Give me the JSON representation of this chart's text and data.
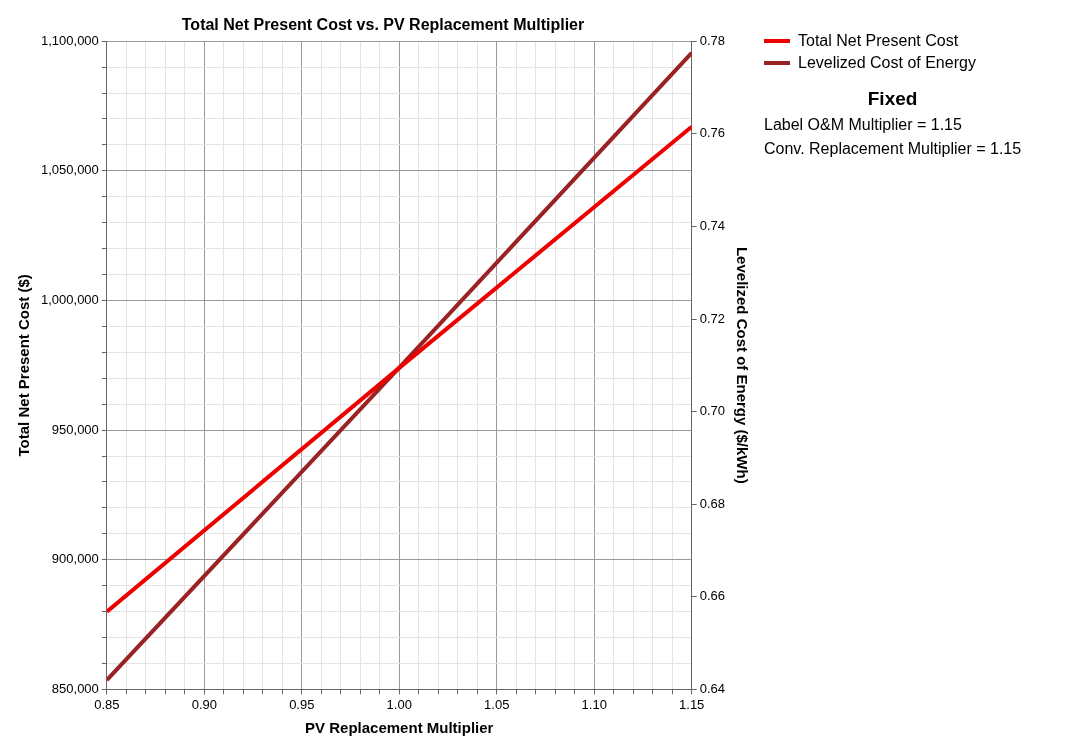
{
  "chart_data": {
    "type": "line",
    "title": "Total Net Present Cost vs. PV Replacement Multiplier",
    "xlabel": "PV Replacement Multiplier",
    "ylabel": "Total Net Present Cost ($)",
    "y2label": "Levelized Cost of Energy ($/kWh)",
    "series": [
      {
        "name": "Total Net Present Cost",
        "color": "#ee0000",
        "x": [
          0.85,
          1.0,
          1.15
        ],
        "values": [
          880000,
          974000,
          1067000
        ]
      },
      {
        "name": "Levelized Cost of Energy",
        "color": "#9b2223",
        "x": [
          0.85,
          1.0,
          1.15
        ],
        "values": [
          0.642,
          0.7095,
          0.7775
        ],
        "axis": "y2"
      }
    ],
    "xlim": [
      0.85,
      1.15
    ],
    "xticks": [
      {
        "value": 0.85,
        "label": "0.85"
      },
      {
        "value": 0.86,
        "label": null
      },
      {
        "value": 0.87,
        "label": null
      },
      {
        "value": 0.88,
        "label": null
      },
      {
        "value": 0.89,
        "label": null
      },
      {
        "value": 0.9,
        "label": "0.90"
      },
      {
        "value": 0.91,
        "label": null
      },
      {
        "value": 0.92,
        "label": null
      },
      {
        "value": 0.93,
        "label": null
      },
      {
        "value": 0.94,
        "label": null
      },
      {
        "value": 0.95,
        "label": "0.95"
      },
      {
        "value": 0.96,
        "label": null
      },
      {
        "value": 0.97,
        "label": null
      },
      {
        "value": 0.98,
        "label": null
      },
      {
        "value": 0.99,
        "label": null
      },
      {
        "value": 1.0,
        "label": "1.00"
      },
      {
        "value": 1.01,
        "label": null
      },
      {
        "value": 1.02,
        "label": null
      },
      {
        "value": 1.03,
        "label": null
      },
      {
        "value": 1.04,
        "label": null
      },
      {
        "value": 1.05,
        "label": "1.05"
      },
      {
        "value": 1.06,
        "label": null
      },
      {
        "value": 1.07,
        "label": null
      },
      {
        "value": 1.08,
        "label": null
      },
      {
        "value": 1.09,
        "label": null
      },
      {
        "value": 1.1,
        "label": "1.10"
      },
      {
        "value": 1.11,
        "label": null
      },
      {
        "value": 1.12,
        "label": null
      },
      {
        "value": 1.13,
        "label": null
      },
      {
        "value": 1.14,
        "label": null
      },
      {
        "value": 1.15,
        "label": "1.15"
      }
    ],
    "ylim": [
      850000,
      1100000
    ],
    "yticks": [
      {
        "value": 850000,
        "label": "850,000"
      },
      {
        "value": 860000,
        "label": null
      },
      {
        "value": 870000,
        "label": null
      },
      {
        "value": 880000,
        "label": null
      },
      {
        "value": 890000,
        "label": null
      },
      {
        "value": 900000,
        "label": "900,000"
      },
      {
        "value": 910000,
        "label": null
      },
      {
        "value": 920000,
        "label": null
      },
      {
        "value": 930000,
        "label": null
      },
      {
        "value": 940000,
        "label": null
      },
      {
        "value": 950000,
        "label": "950,000"
      },
      {
        "value": 960000,
        "label": null
      },
      {
        "value": 970000,
        "label": null
      },
      {
        "value": 980000,
        "label": null
      },
      {
        "value": 990000,
        "label": null
      },
      {
        "value": 1000000,
        "label": "1,000,000"
      },
      {
        "value": 1010000,
        "label": null
      },
      {
        "value": 1020000,
        "label": null
      },
      {
        "value": 1030000,
        "label": null
      },
      {
        "value": 1040000,
        "label": null
      },
      {
        "value": 1050000,
        "label": "1,050,000"
      },
      {
        "value": 1060000,
        "label": null
      },
      {
        "value": 1070000,
        "label": null
      },
      {
        "value": 1080000,
        "label": null
      },
      {
        "value": 1090000,
        "label": null
      },
      {
        "value": 1100000,
        "label": "1,100,000"
      }
    ],
    "y2lim": [
      0.64,
      0.78
    ],
    "y2ticks": [
      {
        "value": 0.64,
        "label": "0.64"
      },
      {
        "value": 0.66,
        "label": "0.66"
      },
      {
        "value": 0.68,
        "label": "0.68"
      },
      {
        "value": 0.7,
        "label": "0.70"
      },
      {
        "value": 0.72,
        "label": "0.72"
      },
      {
        "value": 0.74,
        "label": "0.74"
      },
      {
        "value": 0.76,
        "label": "0.76"
      },
      {
        "value": 0.78,
        "label": "0.78"
      }
    ],
    "grid": true,
    "legend": "top right",
    "marker": "none",
    "line_style": "solid",
    "annotations": [
      "Fixed",
      "Label O&M Multiplier = 1.15",
      "Conv. Replacement Multiplier = 1.15"
    ]
  }
}
